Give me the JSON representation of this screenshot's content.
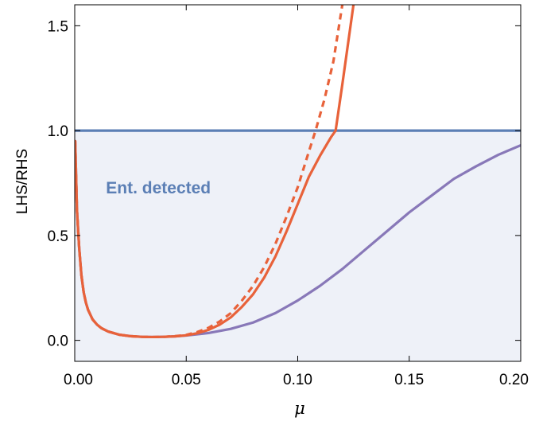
{
  "chart_data": {
    "type": "line",
    "title": "",
    "xlabel": "μ",
    "ylabel": "LHS/RHS",
    "xlim": [
      0,
      0.2
    ],
    "ylim": [
      -0.1,
      1.6
    ],
    "xticks": [
      "0.00",
      "0.05",
      "0.10",
      "0.15",
      "0.20"
    ],
    "yticks": [
      "0.0",
      "0.5",
      "1.0",
      "1.5"
    ],
    "grid": false,
    "annotation": {
      "text": "Ent. detected",
      "x": 0.014,
      "y": 0.7,
      "color": "#5b7fb5"
    },
    "shaded_region": {
      "y_below": 1.0,
      "color": "#eef1f8"
    },
    "series": [
      {
        "style": "solid",
        "color": "#5b7fb5",
        "x": [
          0,
          0.2
        ],
        "y": [
          1.0,
          1.0
        ]
      },
      {
        "style": "solid",
        "color": "#8878b8",
        "x": [
          0.0002,
          0.001,
          0.002,
          0.003,
          0.004,
          0.005,
          0.006,
          0.008,
          0.01,
          0.012,
          0.015,
          0.02,
          0.025,
          0.03,
          0.035,
          0.04,
          0.045,
          0.05,
          0.06,
          0.07,
          0.08,
          0.09,
          0.1,
          0.11,
          0.12,
          0.13,
          0.14,
          0.15,
          0.16,
          0.17,
          0.18,
          0.19,
          0.2
        ],
        "y": [
          0.95,
          0.62,
          0.44,
          0.31,
          0.23,
          0.18,
          0.145,
          0.1,
          0.075,
          0.058,
          0.042,
          0.027,
          0.02,
          0.017,
          0.016,
          0.017,
          0.019,
          0.023,
          0.035,
          0.055,
          0.085,
          0.13,
          0.19,
          0.26,
          0.34,
          0.43,
          0.52,
          0.61,
          0.69,
          0.77,
          0.83,
          0.885,
          0.93
        ]
      },
      {
        "style": "solid",
        "color": "#e8623a",
        "x": [
          0.0002,
          0.001,
          0.002,
          0.003,
          0.004,
          0.005,
          0.006,
          0.008,
          0.01,
          0.012,
          0.015,
          0.02,
          0.025,
          0.03,
          0.035,
          0.04,
          0.045,
          0.05,
          0.055,
          0.06,
          0.065,
          0.07,
          0.075,
          0.08,
          0.085,
          0.09,
          0.095,
          0.1,
          0.105,
          0.11,
          0.115,
          0.117,
          0.12,
          0.125
        ],
        "y": [
          0.95,
          0.62,
          0.44,
          0.31,
          0.23,
          0.18,
          0.145,
          0.1,
          0.075,
          0.058,
          0.042,
          0.027,
          0.02,
          0.017,
          0.016,
          0.017,
          0.019,
          0.024,
          0.034,
          0.05,
          0.075,
          0.11,
          0.16,
          0.22,
          0.3,
          0.4,
          0.52,
          0.65,
          0.78,
          0.88,
          0.97,
          1.0,
          1.22,
          1.6
        ]
      },
      {
        "style": "dashed",
        "color": "#e8623a",
        "x": [
          0.0002,
          0.001,
          0.002,
          0.003,
          0.004,
          0.005,
          0.006,
          0.008,
          0.01,
          0.012,
          0.015,
          0.02,
          0.025,
          0.03,
          0.035,
          0.04,
          0.045,
          0.05,
          0.055,
          0.06,
          0.065,
          0.07,
          0.075,
          0.08,
          0.085,
          0.09,
          0.095,
          0.1,
          0.105,
          0.108,
          0.112,
          0.116,
          0.12
        ],
        "y": [
          0.95,
          0.62,
          0.44,
          0.31,
          0.23,
          0.18,
          0.145,
          0.1,
          0.075,
          0.058,
          0.042,
          0.027,
          0.02,
          0.017,
          0.016,
          0.017,
          0.02,
          0.026,
          0.04,
          0.06,
          0.09,
          0.13,
          0.19,
          0.26,
          0.35,
          0.46,
          0.59,
          0.73,
          0.9,
          1.0,
          1.15,
          1.33,
          1.6
        ]
      }
    ]
  }
}
